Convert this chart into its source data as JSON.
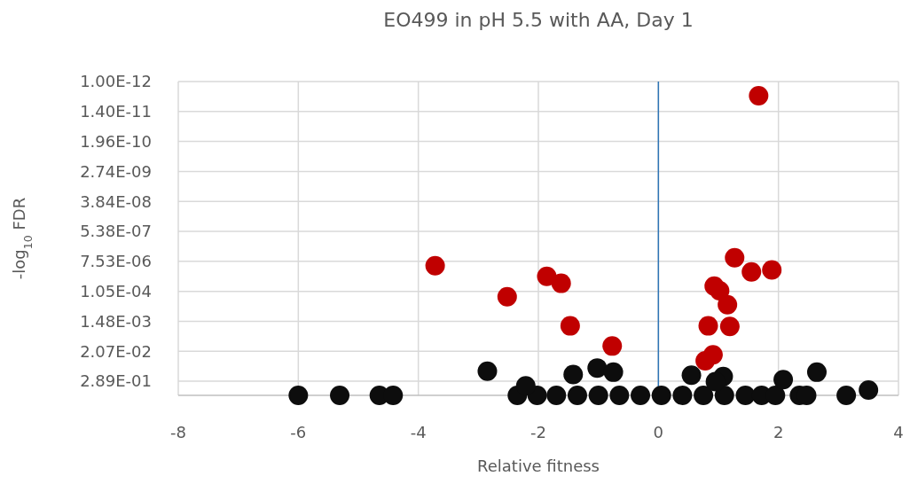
{
  "chart_data": {
    "type": "scatter",
    "title": "EO499 in pH 5.5 with AA, Day 1",
    "xlabel": "Relative fitness",
    "ylabel": "-log$_{10}$ FDR",
    "xlim": [
      -8,
      4
    ],
    "xticks": [
      -8,
      -6,
      -4,
      -2,
      0,
      2,
      4
    ],
    "log": "y",
    "ylim": [
      1,
      1e-12
    ],
    "yticks": [
      {
        "value": 1e-12,
        "label": "1.00E-12"
      },
      {
        "value": 1.4e-11,
        "label": "1.40E-11"
      },
      {
        "value": 1.96e-10,
        "label": "1.96E-10"
      },
      {
        "value": 2.74e-09,
        "label": "2.74E-09"
      },
      {
        "value": 3.84e-08,
        "label": "3.84E-08"
      },
      {
        "value": 5.38e-07,
        "label": "5.38E-07"
      },
      {
        "value": 7.53e-06,
        "label": "7.53E-06"
      },
      {
        "value": 0.000105,
        "label": "1.05E-04"
      },
      {
        "value": 0.00148,
        "label": "1.48E-03"
      },
      {
        "value": 0.0207,
        "label": "2.07E-02"
      },
      {
        "value": 0.289,
        "label": "2.89E-01"
      }
    ],
    "grid": true,
    "marker": "circle",
    "ref_lines": [
      {
        "axis": "x",
        "value": 0,
        "color": "#2e75b6"
      }
    ],
    "series": [
      {
        "color": "#0d0d0d",
        "x": [
          -6.0,
          -5.31,
          -4.65,
          -4.42,
          -2.35,
          -2.02,
          -1.7,
          -1.35,
          -1.0,
          -0.65,
          -0.3,
          0.05,
          0.4,
          0.75,
          1.1,
          1.45,
          1.72,
          1.95,
          2.35,
          2.47,
          3.13,
          -2.85,
          -2.21,
          -1.42,
          -1.02,
          -0.75,
          0.55,
          1.08,
          0.95,
          2.08,
          2.64,
          3.5
        ],
        "values": [
          1,
          1,
          1,
          1,
          1,
          1,
          1,
          1,
          1,
          1,
          1,
          1,
          1,
          1,
          1,
          1,
          1,
          1,
          1,
          1,
          1,
          0.12,
          0.43,
          0.16,
          0.09,
          0.13,
          0.17,
          0.19,
          0.3,
          0.25,
          0.13,
          0.63
        ]
      },
      {
        "color": "#c00000",
        "x": [
          1.67,
          -3.72,
          -2.52,
          -1.86,
          -1.62,
          -1.47,
          -0.77,
          1.27,
          1.55,
          1.89,
          0.93,
          1.02,
          1.15,
          0.83,
          1.19,
          0.91,
          0.78
        ],
        "values": [
          3.5e-12,
          1.1e-05,
          0.00017,
          2.8e-05,
          5.2e-05,
          0.0022,
          0.013,
          5.5e-06,
          1.9e-05,
          1.6e-05,
          6.6e-05,
          0.0001,
          0.00034,
          0.0022,
          0.0023,
          0.028,
          0.048
        ]
      }
    ]
  }
}
